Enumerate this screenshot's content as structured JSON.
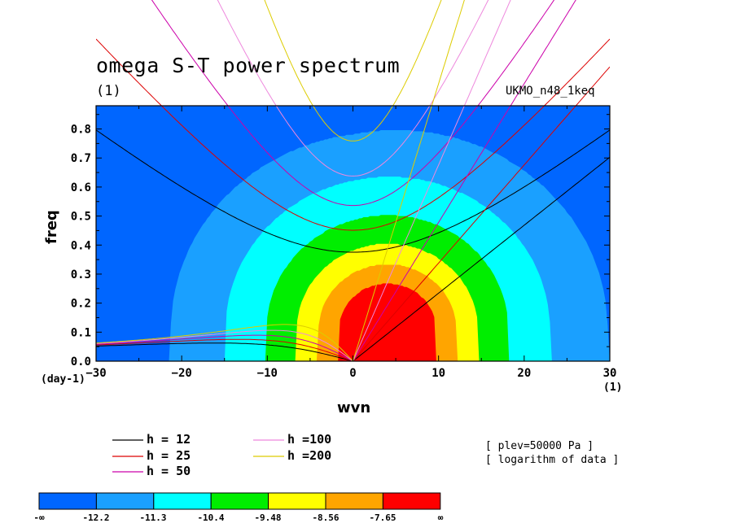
{
  "header": {
    "title": "omega S-T power spectrum",
    "unit": "(1)",
    "model": "UKMO_n48_1keq"
  },
  "axes": {
    "ylabel": "freq",
    "xlabel": "wvn",
    "y_unit": "(day-1)",
    "x_unit": "(1)"
  },
  "info": {
    "plev": "[ plev=50000 Pa ]",
    "log": "[ logarithm of data ]"
  },
  "legend": {
    "items": [
      {
        "label": "h = 12",
        "color": "#000000"
      },
      {
        "label": "h = 25",
        "color": "#dd0000"
      },
      {
        "label": "h = 50",
        "color": "#cc00aa"
      },
      {
        "label": "h =100",
        "color": "#ee88dd"
      },
      {
        "label": "h =200",
        "color": "#ddcc00"
      }
    ]
  },
  "colorbar": {
    "colors": [
      "#0066ff",
      "#1aa0ff",
      "#00ffff",
      "#00ee00",
      "#ffff00",
      "#ffa500",
      "#ff0000"
    ],
    "labels": [
      "-∞",
      "-12.2",
      "-11.3",
      "-10.4",
      "-9.48",
      "-8.56",
      "-7.65",
      "∞"
    ]
  },
  "chart_data": {
    "type": "heatmap",
    "title": "omega S-T power spectrum",
    "xlabel": "wvn",
    "ylabel": "freq",
    "xlim": [
      -30,
      30
    ],
    "ylim": [
      0,
      0.88
    ],
    "xticks": [
      -30,
      -20,
      -10,
      0,
      10,
      20,
      30
    ],
    "yticks": [
      0.0,
      0.1,
      0.2,
      0.3,
      0.4,
      0.5,
      0.6,
      0.7,
      0.8
    ],
    "xtick_labels": [
      "−30",
      "−20",
      "−10",
      "0",
      "10",
      "20",
      "30"
    ],
    "ytick_labels": [
      "0.0",
      "0.1",
      "0.2",
      "0.3",
      "0.4",
      "0.5",
      "0.6",
      "0.7",
      "0.8"
    ],
    "contour_levels": [
      "-∞",
      "-12.2",
      "-11.3",
      "-10.4",
      "-9.48",
      "-8.56",
      "-7.65",
      "∞"
    ],
    "dispersion_curves": {
      "equivalent_depths_m": [
        12,
        25,
        50,
        100,
        200
      ],
      "families": [
        "kelvin",
        "inertia-gravity n=1",
        "equatorial rossby n=1"
      ]
    }
  }
}
